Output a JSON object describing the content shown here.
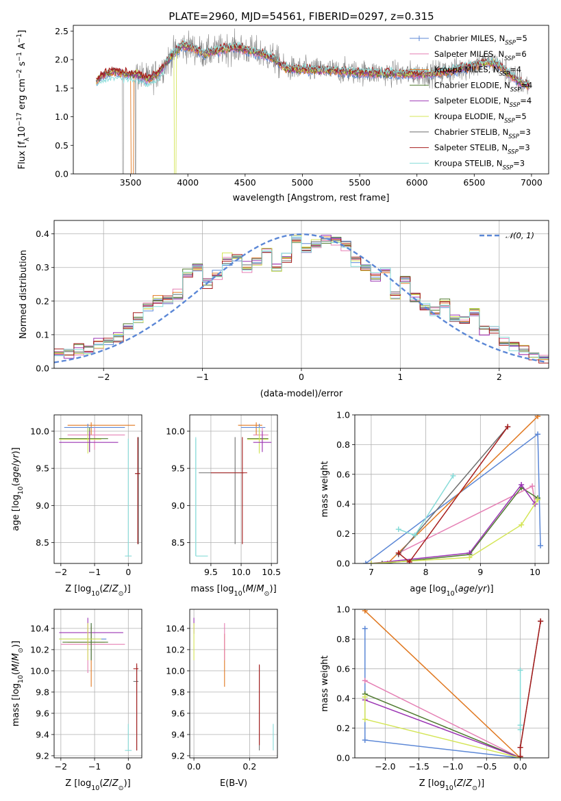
{
  "title": "PLATE=2960, MJD=54561, FIBERID=0297, z=0.315",
  "colors": {
    "Chabrier MILES": "#5b87d6",
    "Salpeter MILES": "#e57fb4",
    "Kroupa MILES": "#e0771f",
    "Chabrier ELODIE": "#4f7a2f",
    "Salpeter ELODIE": "#9a33b3",
    "Kroupa ELODIE": "#d4e557",
    "Chabrier STELIB": "#6e6e6e",
    "Salpeter STELIB": "#a61c1c",
    "Kroupa STELIB": "#86dbd8",
    "data": "#7f7f7f",
    "normal": "#5b87d6"
  },
  "chart_data": [
    {
      "id": "spectrum",
      "type": "line",
      "title": "PLATE=2960, MJD=54561, FIBERID=0297, z=0.315",
      "xlabel": "wavelength [Angstrom, rest frame]",
      "ylabel_parts": [
        "Flux [f",
        "λ",
        "10",
        "−17",
        " erg cm",
        "−2",
        " s",
        "−1",
        " A",
        "−1",
        "]"
      ],
      "xlim": [
        3000,
        7150
      ],
      "ylim": [
        0,
        2.6
      ],
      "xticks": [
        3500,
        4000,
        4500,
        5000,
        5500,
        6000,
        6500,
        7000
      ],
      "yticks": [
        0.0,
        0.5,
        1.0,
        1.5,
        2.0,
        2.5
      ],
      "xtick_labels": [
        "3500",
        "4000",
        "4500",
        "5000",
        "5500",
        "6000",
        "6500",
        "7000"
      ],
      "ytick_labels": [
        "0.0",
        "0.5",
        "1.0",
        "1.5",
        "2.0",
        "2.5"
      ],
      "grid": false,
      "legend_position": "right",
      "legend": [
        {
          "label": "Chabrier MILES, N",
          "sub": "SSP",
          "suffix": "=5"
        },
        {
          "label": "Salpeter MILES, N",
          "sub": "SSP",
          "suffix": "=6"
        },
        {
          "label": "Kroupa MILES, N",
          "sub": "SSP",
          "suffix": "=4"
        },
        {
          "label": "Chabrier ELODIE, N",
          "sub": "SSP",
          "suffix": "=4"
        },
        {
          "label": "Salpeter ELODIE, N",
          "sub": "SSP",
          "suffix": "=4"
        },
        {
          "label": "Kroupa ELODIE, N",
          "sub": "SSP",
          "suffix": "=5"
        },
        {
          "label": "Chabrier STELIB, N",
          "sub": "SSP",
          "suffix": "=3"
        },
        {
          "label": "Salpeter STELIB, N",
          "sub": "SSP",
          "suffix": "=3"
        },
        {
          "label": "Kroupa STELIB, N",
          "sub": "SSP",
          "suffix": "=3"
        }
      ],
      "data_wavelength_range": [
        3200,
        6980
      ],
      "model_envelope": [
        [
          3200,
          1.62
        ],
        [
          3250,
          1.72
        ],
        [
          3350,
          1.8
        ],
        [
          3450,
          1.75
        ],
        [
          3550,
          1.75
        ],
        [
          3650,
          1.65
        ],
        [
          3750,
          1.78
        ],
        [
          3850,
          2.05
        ],
        [
          3950,
          2.25
        ],
        [
          4050,
          2.2
        ],
        [
          4150,
          2.1
        ],
        [
          4250,
          2.15
        ],
        [
          4350,
          2.2
        ],
        [
          4450,
          2.2
        ],
        [
          4550,
          2.15
        ],
        [
          4650,
          2.1
        ],
        [
          4750,
          2.02
        ],
        [
          4850,
          1.85
        ],
        [
          4950,
          1.83
        ],
        [
          5100,
          1.82
        ],
        [
          5300,
          1.8
        ],
        [
          5500,
          1.78
        ],
        [
          5700,
          1.76
        ],
        [
          5900,
          1.75
        ],
        [
          6100,
          1.75
        ],
        [
          6300,
          1.8
        ],
        [
          6500,
          1.9
        ],
        [
          6600,
          1.95
        ],
        [
          6700,
          1.92
        ],
        [
          6800,
          1.75
        ],
        [
          6900,
          1.6
        ],
        [
          6980,
          1.55
        ]
      ]
    },
    {
      "id": "residuals",
      "type": "histogram",
      "xlabel": "(data-model)/error",
      "ylabel": "Normed distribution",
      "xlim": [
        -2.5,
        2.5
      ],
      "ylim": [
        0,
        0.44
      ],
      "xticks": [
        -2,
        -1,
        0,
        1,
        2
      ],
      "yticks": [
        0.0,
        0.1,
        0.2,
        0.3,
        0.4
      ],
      "xtick_labels": [
        "−2",
        "−1",
        "0",
        "1",
        "2"
      ],
      "ytick_labels": [
        "0.0",
        "0.1",
        "0.2",
        "0.3",
        "0.4"
      ],
      "grid": true,
      "legend_position": "top-right",
      "legend_label": "𝒩(0, 1)",
      "bin_width": 0.1,
      "bin_start": -2.5,
      "base_density": [
        0.05,
        0.045,
        0.05,
        0.055,
        0.075,
        0.08,
        0.09,
        0.12,
        0.15,
        0.18,
        0.2,
        0.2,
        0.22,
        0.28,
        0.3,
        0.26,
        0.28,
        0.32,
        0.33,
        0.3,
        0.32,
        0.35,
        0.3,
        0.33,
        0.38,
        0.36,
        0.37,
        0.38,
        0.38,
        0.37,
        0.32,
        0.3,
        0.27,
        0.29,
        0.22,
        0.26,
        0.21,
        0.18,
        0.17,
        0.19,
        0.15,
        0.14,
        0.17,
        0.12,
        0.11,
        0.08,
        0.07,
        0.05,
        0.04,
        0.03
      ]
    },
    {
      "id": "age-vs-z",
      "type": "errorbar",
      "xlabel": "Z [log10(Z/Z⊙)]",
      "ylabel": "age [log10(age/yr)]",
      "xlim": [
        -2.2,
        0.4
      ],
      "ylim": [
        8.22,
        10.22
      ],
      "xticks": [
        -2,
        -1,
        0
      ],
      "yticks": [
        8.5,
        9.0,
        9.5,
        10.0
      ],
      "xtick_labels": [
        "−2",
        "−1",
        "0"
      ],
      "ytick_labels": [
        "8.5",
        "9.0",
        "9.5",
        "10.0"
      ],
      "grid": true
    },
    {
      "id": "age-vs-mass",
      "type": "errorbar",
      "xlabel": "mass [log10(M/M⊙)]",
      "ylabel": "",
      "xlim": [
        9.15,
        10.6
      ],
      "ylim": [
        8.22,
        10.22
      ],
      "xticks": [
        9.5,
        10.0,
        10.5
      ],
      "yticks": [
        8.5,
        9.0,
        9.5,
        10.0
      ],
      "xtick_labels": [
        "9.5",
        "10.0",
        "10.5"
      ],
      "ytick_labels": [
        "8.5",
        "9.0",
        "9.5",
        "10.0"
      ],
      "grid": true
    },
    {
      "id": "weight-vs-age",
      "type": "line",
      "xlabel": "age [log10(age/yr)]",
      "ylabel": "mass weight",
      "xlim": [
        6.7,
        10.25
      ],
      "ylim": [
        0,
        1.0
      ],
      "xticks": [
        7,
        8,
        9,
        10
      ],
      "yticks": [
        0.0,
        0.2,
        0.4,
        0.6,
        0.8,
        1.0
      ],
      "xtick_labels": [
        "7",
        "8",
        "9",
        "10"
      ],
      "ytick_labels": [
        "0.0",
        "0.2",
        "0.4",
        "0.6",
        "0.8",
        "1.0"
      ],
      "grid": true,
      "series": [
        {
          "key": "Chabrier MILES",
          "x": [
            6.9,
            10.05,
            10.1
          ],
          "y": [
            0.0,
            0.87,
            0.12
          ]
        },
        {
          "key": "Salpeter MILES",
          "x": [
            7.5,
            9.95,
            10.0
          ],
          "y": [
            0.07,
            0.52,
            0.4
          ]
        },
        {
          "key": "Kroupa MILES",
          "x": [
            7.3,
            10.05
          ],
          "y": [
            0.0,
            0.99
          ]
        },
        {
          "key": "Chabrier ELODIE",
          "x": [
            7.2,
            8.8,
            9.75,
            10.05
          ],
          "y": [
            0.0,
            0.06,
            0.51,
            0.44
          ]
        },
        {
          "key": "Salpeter ELODIE",
          "x": [
            7.0,
            8.8,
            9.75,
            10.0
          ],
          "y": [
            0.0,
            0.07,
            0.53,
            0.4
          ]
        },
        {
          "key": "Kroupa ELODIE",
          "x": [
            7.0,
            8.8,
            9.75,
            10.05
          ],
          "y": [
            0.0,
            0.04,
            0.26,
            0.43
          ]
        },
        {
          "key": "Chabrier STELIB",
          "x": [
            7.5,
            9.5
          ],
          "y": [
            0.06,
            0.92
          ]
        },
        {
          "key": "Kroupa STELIB",
          "x": [
            7.5,
            7.8,
            8.5
          ],
          "y": [
            0.23,
            0.19,
            0.59
          ]
        },
        {
          "key": "Salpeter STELIB",
          "x": [
            7.5,
            7.7,
            9.5
          ],
          "y": [
            0.07,
            0.01,
            0.92
          ]
        }
      ]
    },
    {
      "id": "mass-vs-z",
      "type": "errorbar",
      "xlabel": "Z [log10(Z/Z⊙)]",
      "ylabel": "mass [log10(M/M⊙)]",
      "xlim": [
        -2.2,
        0.4
      ],
      "ylim": [
        9.18,
        10.58
      ],
      "xticks": [
        -2,
        -1,
        0
      ],
      "yticks": [
        9.2,
        9.4,
        9.6,
        9.8,
        10.0,
        10.2,
        10.4
      ],
      "xtick_labels": [
        "−2",
        "−1",
        "0"
      ],
      "ytick_labels": [
        "9.2",
        "9.4",
        "9.6",
        "9.8",
        "10.0",
        "10.2",
        "10.4"
      ],
      "grid": true
    },
    {
      "id": "mass-vs-ebv",
      "type": "errorbar",
      "xlabel": "E(B-V)",
      "ylabel": "",
      "xlim": [
        -0.015,
        0.3
      ],
      "ylim": [
        9.18,
        10.58
      ],
      "xticks": [
        0.0,
        0.2
      ],
      "yticks": [
        9.2,
        9.4,
        9.6,
        9.8,
        10.0,
        10.2,
        10.4
      ],
      "xtick_labels": [
        "0.0",
        "0.2"
      ],
      "ytick_labels": [
        "9.2",
        "9.4",
        "9.6",
        "9.8",
        "10.0",
        "10.2",
        "10.4"
      ],
      "grid": true
    },
    {
      "id": "weight-vs-z",
      "type": "line",
      "xlabel": "Z [log10(Z/Z⊙)]",
      "ylabel": "mass weight",
      "xlim": [
        -2.45,
        0.42
      ],
      "ylim": [
        0,
        1.0
      ],
      "xticks": [
        -2.0,
        -1.5,
        -1.0,
        -0.5,
        0.0
      ],
      "yticks": [
        0.0,
        0.2,
        0.4,
        0.6,
        0.8,
        1.0
      ],
      "xtick_labels": [
        "−2.0",
        "−1.5",
        "−1.0",
        "−0.5",
        "0.0"
      ],
      "ytick_labels": [
        "0.0",
        "0.2",
        "0.4",
        "0.6",
        "0.8",
        "1.0"
      ],
      "grid": true,
      "series": [
        {
          "key": "Chabrier MILES",
          "x": [
            -2.3,
            -2.3,
            0.0
          ],
          "y": [
            0.87,
            0.12,
            0.0
          ]
        },
        {
          "key": "Salpeter MILES",
          "x": [
            -2.3,
            0.0
          ],
          "y": [
            0.52,
            0.0
          ]
        },
        {
          "key": "Kroupa MILES",
          "x": [
            -2.3,
            0.0
          ],
          "y": [
            0.99,
            0.0
          ]
        },
        {
          "key": "Chabrier ELODIE",
          "x": [
            -2.3,
            0.0
          ],
          "y": [
            0.43,
            0.0
          ]
        },
        {
          "key": "Salpeter ELODIE",
          "x": [
            -2.3,
            0.0
          ],
          "y": [
            0.39,
            0.0
          ]
        },
        {
          "key": "Kroupa ELODIE",
          "x": [
            -2.3,
            -2.3,
            0.0
          ],
          "y": [
            0.41,
            0.26,
            0.0
          ]
        },
        {
          "key": "Kroupa STELIB",
          "x": [
            0.0,
            0.0,
            0.0
          ],
          "y": [
            0.59,
            0.22,
            0.19
          ]
        },
        {
          "key": "Chabrier STELIB",
          "x": [
            0.0,
            0.0,
            0.3
          ],
          "y": [
            0.01,
            0.07,
            0.92
          ]
        },
        {
          "key": "Salpeter STELIB",
          "x": [
            0.0,
            0.0,
            0.3
          ],
          "y": [
            0.01,
            0.07,
            0.92
          ]
        }
      ]
    }
  ]
}
